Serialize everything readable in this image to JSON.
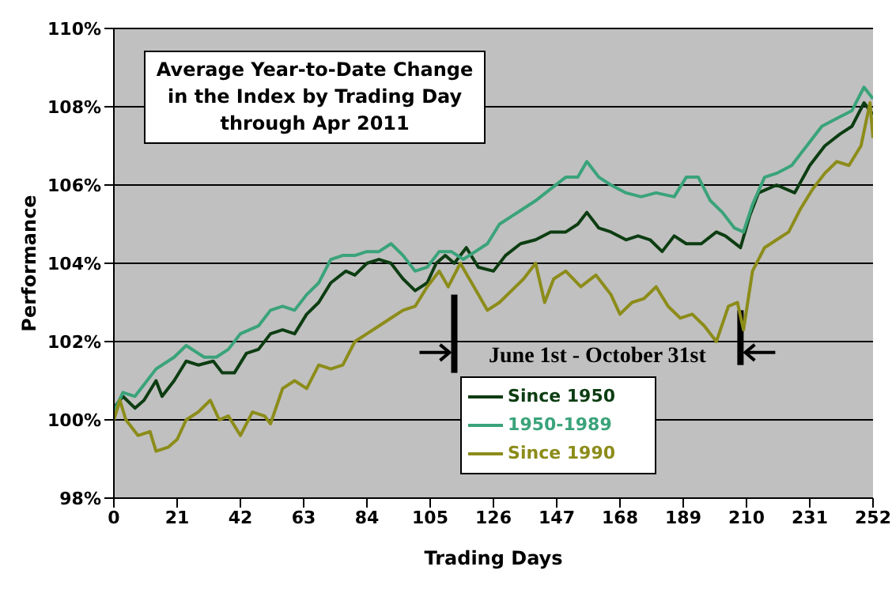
{
  "chart_data": {
    "type": "line",
    "title": "Average Year-to-Date Change in the Index by Trading Day through Apr 2011",
    "xlabel": "Trading Days",
    "ylabel": "Performance",
    "annotations": [
      "June 1st - October 31st"
    ],
    "xlim": [
      0,
      252
    ],
    "xticks": [
      0,
      21,
      42,
      63,
      84,
      105,
      126,
      147,
      168,
      189,
      210,
      231,
      252
    ],
    "ylim": [
      98,
      110
    ],
    "yticks": [
      {
        "value": 98,
        "label": "98%"
      },
      {
        "value": 100,
        "label": "100%"
      },
      {
        "value": 102,
        "label": "102%"
      },
      {
        "value": 104,
        "label": "104%"
      },
      {
        "value": 106,
        "label": "106%"
      },
      {
        "value": 108,
        "label": "108%"
      },
      {
        "value": 110,
        "label": "110%"
      }
    ],
    "grid": "y",
    "legend": "bottom",
    "line_style": "solid",
    "series": [
      {
        "name": "Since 1950",
        "color": "#0d3d12",
        "x": [
          0,
          3,
          7,
          10,
          14,
          16,
          20,
          24,
          28,
          33,
          36,
          40,
          44,
          48,
          52,
          56,
          60,
          64,
          68,
          72,
          77,
          80,
          84,
          88,
          92,
          96,
          100,
          104,
          107,
          110,
          113,
          117,
          121,
          126,
          130,
          135,
          140,
          145,
          150,
          154,
          157,
          161,
          165,
          170,
          174,
          178,
          182,
          186,
          190,
          195,
          200,
          203,
          208,
          211,
          214,
          220,
          226,
          231,
          236,
          241,
          245,
          249,
          252
        ],
        "values": [
          100.3,
          100.6,
          100.3,
          100.5,
          101.0,
          100.6,
          101.0,
          101.5,
          101.4,
          101.5,
          101.2,
          101.2,
          101.7,
          101.8,
          102.2,
          102.3,
          102.2,
          102.7,
          103.0,
          103.5,
          103.8,
          103.7,
          104.0,
          104.1,
          104.0,
          103.6,
          103.3,
          103.5,
          104.0,
          104.2,
          104.0,
          104.4,
          103.9,
          103.8,
          104.2,
          104.5,
          104.6,
          104.8,
          104.8,
          105.0,
          105.3,
          104.9,
          104.8,
          104.6,
          104.7,
          104.6,
          104.3,
          104.7,
          104.5,
          104.5,
          104.8,
          104.7,
          104.4,
          105.2,
          105.8,
          106.0,
          105.8,
          106.5,
          107.0,
          107.3,
          107.5,
          108.1,
          107.8
        ]
      },
      {
        "name": "1950-1989",
        "color": "#3aa37a",
        "x": [
          0,
          3,
          7,
          10,
          14,
          20,
          24,
          30,
          34,
          38,
          42,
          48,
          52,
          56,
          60,
          64,
          68,
          72,
          76,
          80,
          84,
          88,
          92,
          96,
          100,
          104,
          108,
          112,
          116,
          120,
          124,
          128,
          132,
          136,
          140,
          145,
          150,
          154,
          157,
          161,
          165,
          170,
          175,
          180,
          186,
          190,
          194,
          198,
          202,
          206,
          209,
          212,
          216,
          220,
          225,
          230,
          235,
          240,
          245,
          249,
          252
        ],
        "values": [
          100.2,
          100.7,
          100.6,
          100.9,
          101.3,
          101.6,
          101.9,
          101.6,
          101.6,
          101.8,
          102.2,
          102.4,
          102.8,
          102.9,
          102.8,
          103.2,
          103.5,
          104.1,
          104.2,
          104.2,
          104.3,
          104.3,
          104.5,
          104.2,
          103.8,
          103.9,
          104.3,
          104.3,
          104.1,
          104.3,
          104.5,
          105.0,
          105.2,
          105.4,
          105.6,
          105.9,
          106.2,
          106.2,
          106.6,
          106.2,
          106.0,
          105.8,
          105.7,
          105.8,
          105.7,
          106.2,
          106.2,
          105.6,
          105.3,
          104.9,
          104.8,
          105.5,
          106.2,
          106.3,
          106.5,
          107.0,
          107.5,
          107.7,
          107.9,
          108.5,
          108.2
        ]
      },
      {
        "name": "Since 1990",
        "color": "#8c8c1a",
        "x": [
          0,
          2,
          4,
          8,
          12,
          14,
          18,
          21,
          24,
          28,
          32,
          35,
          38,
          42,
          46,
          50,
          52,
          56,
          60,
          64,
          68,
          72,
          76,
          80,
          84,
          88,
          92,
          96,
          100,
          104,
          108,
          111,
          115,
          118,
          121,
          124,
          128,
          132,
          136,
          140,
          143,
          146,
          150,
          155,
          160,
          165,
          168,
          172,
          176,
          180,
          184,
          188,
          192,
          196,
          200,
          204,
          207,
          209,
          212,
          216,
          220,
          224,
          228,
          232,
          236,
          240,
          244,
          248,
          251,
          252
        ],
        "values": [
          100.0,
          100.5,
          100.0,
          99.6,
          99.7,
          99.2,
          99.3,
          99.5,
          100.0,
          100.2,
          100.5,
          100.0,
          100.1,
          99.6,
          100.2,
          100.1,
          99.9,
          100.8,
          101.0,
          100.8,
          101.4,
          101.3,
          101.4,
          102.0,
          102.2,
          102.4,
          102.6,
          102.8,
          102.9,
          103.4,
          103.8,
          103.4,
          104.0,
          103.6,
          103.2,
          102.8,
          103.0,
          103.3,
          103.6,
          104.0,
          103.0,
          103.6,
          103.8,
          103.4,
          103.7,
          103.2,
          102.7,
          103.0,
          103.1,
          103.4,
          102.9,
          102.6,
          102.7,
          102.4,
          102.0,
          102.9,
          103.0,
          102.3,
          103.8,
          104.4,
          104.6,
          104.8,
          105.4,
          105.9,
          106.3,
          106.6,
          106.5,
          107.0,
          108.1,
          107.2
        ]
      }
    ]
  }
}
